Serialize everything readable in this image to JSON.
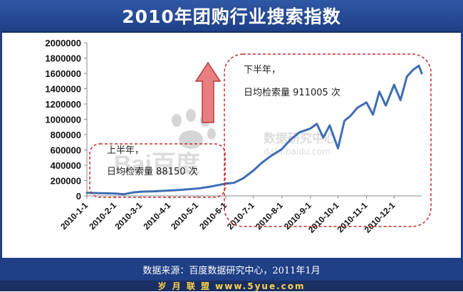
{
  "header": {
    "title": "2010年团购行业搜索指数"
  },
  "footer": {
    "source": "数据来源：百度数据研究中心，2011年1月",
    "site": "岁 月 联 盟   www.5yue.com"
  },
  "watermark": {
    "brand": "Bai百度",
    "center": "数据研究中心",
    "domain": "data.baidu.com"
  },
  "annotations": {
    "first_half": {
      "line1": "上半年，",
      "line2": "日均检索量 88150 次"
    },
    "second_half": {
      "line1": "下半年，",
      "line2": "日均检索量 911005 次"
    }
  },
  "colors": {
    "header": "#1f3f86",
    "line": "#3f6db3",
    "dash_box": "#c8282d",
    "arrow_fill": "#e87e80",
    "arrow_stroke": "#b83a3c",
    "site_text": "#ffd24a"
  },
  "chart_data": {
    "type": "line",
    "title": "2010年团购行业搜索指数",
    "xlabel": "",
    "ylabel": "",
    "ylim": [
      0,
      2000000
    ],
    "yticks": [
      "0",
      "200000",
      "400000",
      "600000",
      "800000",
      "1000000",
      "1200000",
      "1400000",
      "1600000",
      "1800000",
      "2000000"
    ],
    "xticks": [
      "2010-1-1",
      "2010-2-1",
      "2010-3-1",
      "2010-4-1",
      "2010-5-1",
      "2010-6-1",
      "2010-7-1",
      "2010-8-1",
      "2010-9-1",
      "2010-10-1",
      "2010-11-1",
      "2010-12-1"
    ],
    "grid": false,
    "legend": "none",
    "series": [
      {
        "x": [
          "2010-1-1",
          "2010-1-15",
          "2010-2-1",
          "2010-2-10",
          "2010-2-20",
          "2010-3-1",
          "2010-3-15",
          "2010-4-1",
          "2010-4-15",
          "2010-5-1",
          "2010-5-15",
          "2010-6-1",
          "2010-6-10",
          "2010-6-20",
          "2010-7-1",
          "2010-7-10",
          "2010-7-20",
          "2010-8-1",
          "2010-8-10",
          "2010-8-20",
          "2010-9-1",
          "2010-9-8",
          "2010-9-15",
          "2010-9-22",
          "2010-10-1",
          "2010-10-8",
          "2010-10-15",
          "2010-10-22",
          "2010-11-1",
          "2010-11-8",
          "2010-11-15",
          "2010-11-22",
          "2010-12-1",
          "2010-12-8",
          "2010-12-15",
          "2010-12-22",
          "2010-12-28",
          "2010-12-31"
        ],
        "values": [
          40000,
          35000,
          30000,
          20000,
          45000,
          55000,
          60000,
          70000,
          80000,
          95000,
          120000,
          160000,
          170000,
          230000,
          330000,
          430000,
          520000,
          610000,
          730000,
          830000,
          880000,
          940000,
          760000,
          920000,
          620000,
          980000,
          1050000,
          1150000,
          1220000,
          1060000,
          1360000,
          1180000,
          1450000,
          1250000,
          1560000,
          1650000,
          1700000,
          1600000
        ]
      }
    ]
  }
}
